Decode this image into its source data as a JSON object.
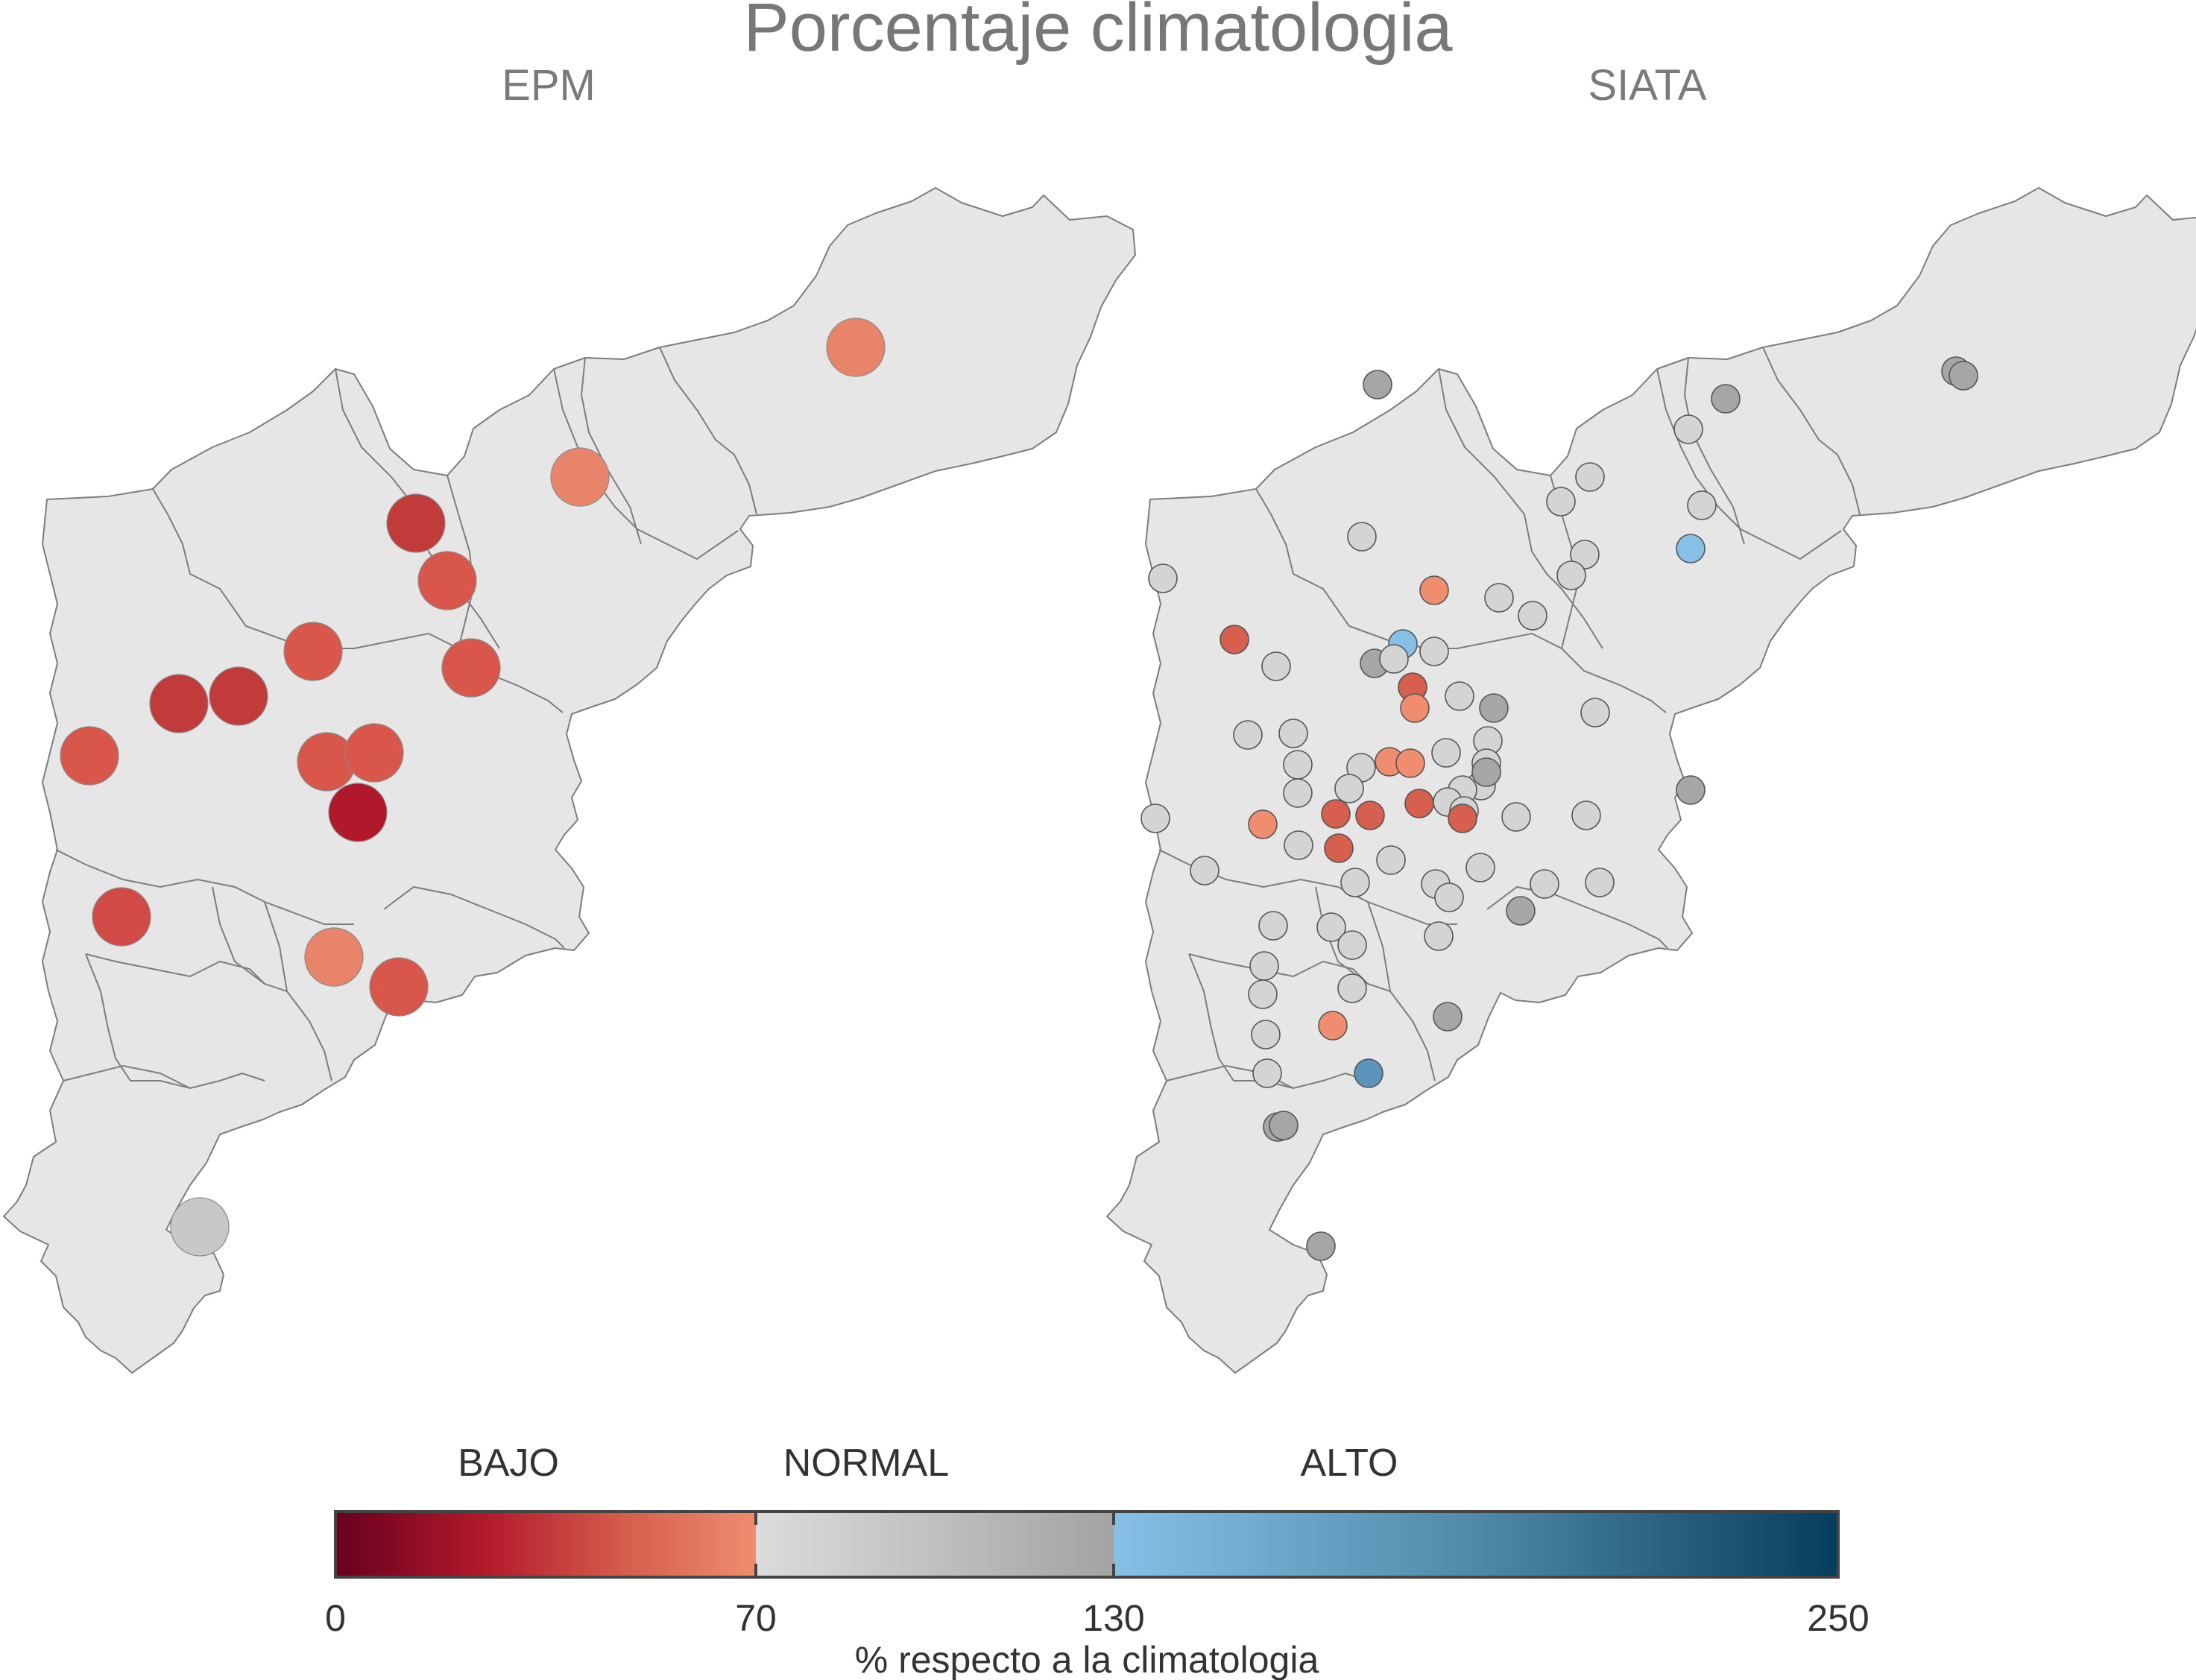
{
  "title": "Porcentaje climatologia",
  "panels": [
    {
      "name": "EPM",
      "stations": [
        {
          "value": 40,
          "color": "#e8846a"
        },
        {
          "value": 45,
          "color": "#e8846a"
        },
        {
          "value": 22,
          "color": "#c23b3b"
        },
        {
          "value": 30,
          "color": "#d9564a"
        },
        {
          "value": 32,
          "color": "#d9564a"
        },
        {
          "value": 32,
          "color": "#d9564a"
        },
        {
          "value": 22,
          "color": "#c23b3b"
        },
        {
          "value": 22,
          "color": "#c23b3b"
        },
        {
          "value": 32,
          "color": "#d9564a"
        },
        {
          "value": 32,
          "color": "#d9564a"
        },
        {
          "value": 32,
          "color": "#d9564a"
        },
        {
          "value": 12,
          "color": "#b2182b"
        },
        {
          "value": 28,
          "color": "#d24a45"
        },
        {
          "value": 48,
          "color": "#e8846a"
        },
        {
          "value": 32,
          "color": "#d9564a"
        },
        {
          "value": 90,
          "color": "#c8c8c8"
        }
      ]
    },
    {
      "name": "SIATA",
      "stations": []
    }
  ],
  "legend": {
    "categories": [
      "BAJO",
      "NORMAL",
      "ALTO"
    ],
    "ticks": [
      "0",
      "70",
      "130",
      "250"
    ],
    "tick_values": [
      0,
      70,
      130,
      250
    ],
    "range": [
      0,
      250
    ],
    "xlabel": "% respecto a la climatologia",
    "colors": {
      "bajo": [
        "#67001f",
        "#b2182b",
        "#d6604d",
        "#ef8d6e"
      ],
      "normal": [
        "#dcdcdc",
        "#a3a3a3"
      ],
      "alto": [
        "#86c0e6",
        "#4f8aaa",
        "#053d5e"
      ]
    }
  },
  "colors": {
    "region_fill": "#e6e6e6",
    "region_stroke": "#7d7d7d",
    "low_dark": "#b2182b",
    "low": "#d6604d",
    "low_light": "#ef8d6e",
    "normal_light": "#d4d4d4",
    "normal_dark": "#a6a6a6",
    "high": "#7bb3d8"
  }
}
